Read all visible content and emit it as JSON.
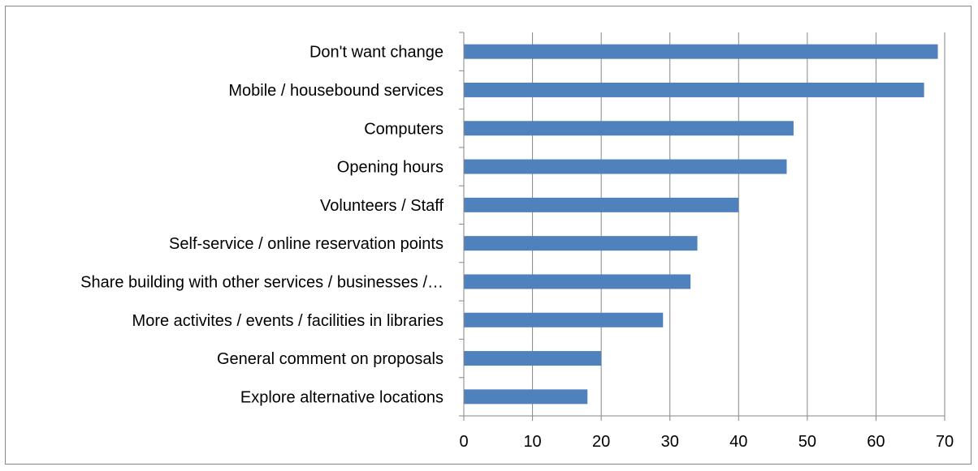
{
  "chart_data": {
    "type": "bar",
    "orientation": "horizontal",
    "categories": [
      "Don't want change",
      "Mobile / housebound services",
      "Computers",
      "Opening hours",
      "Volunteers / Staff",
      "Self-service / online reservation points",
      "Share building with other services / businesses /…",
      "More activites / events / facilities in libraries",
      "General comment on proposals",
      "Explore alternative locations"
    ],
    "values": [
      69,
      67,
      48,
      47,
      40,
      34,
      33,
      29,
      20,
      18
    ],
    "xlim": [
      0,
      70
    ],
    "x_ticks": [
      0,
      10,
      20,
      30,
      40,
      50,
      60,
      70
    ],
    "grid": "vertical",
    "legend": "none",
    "bar_color": "#4F81BD",
    "title": "",
    "xlabel": "",
    "ylabel": ""
  }
}
